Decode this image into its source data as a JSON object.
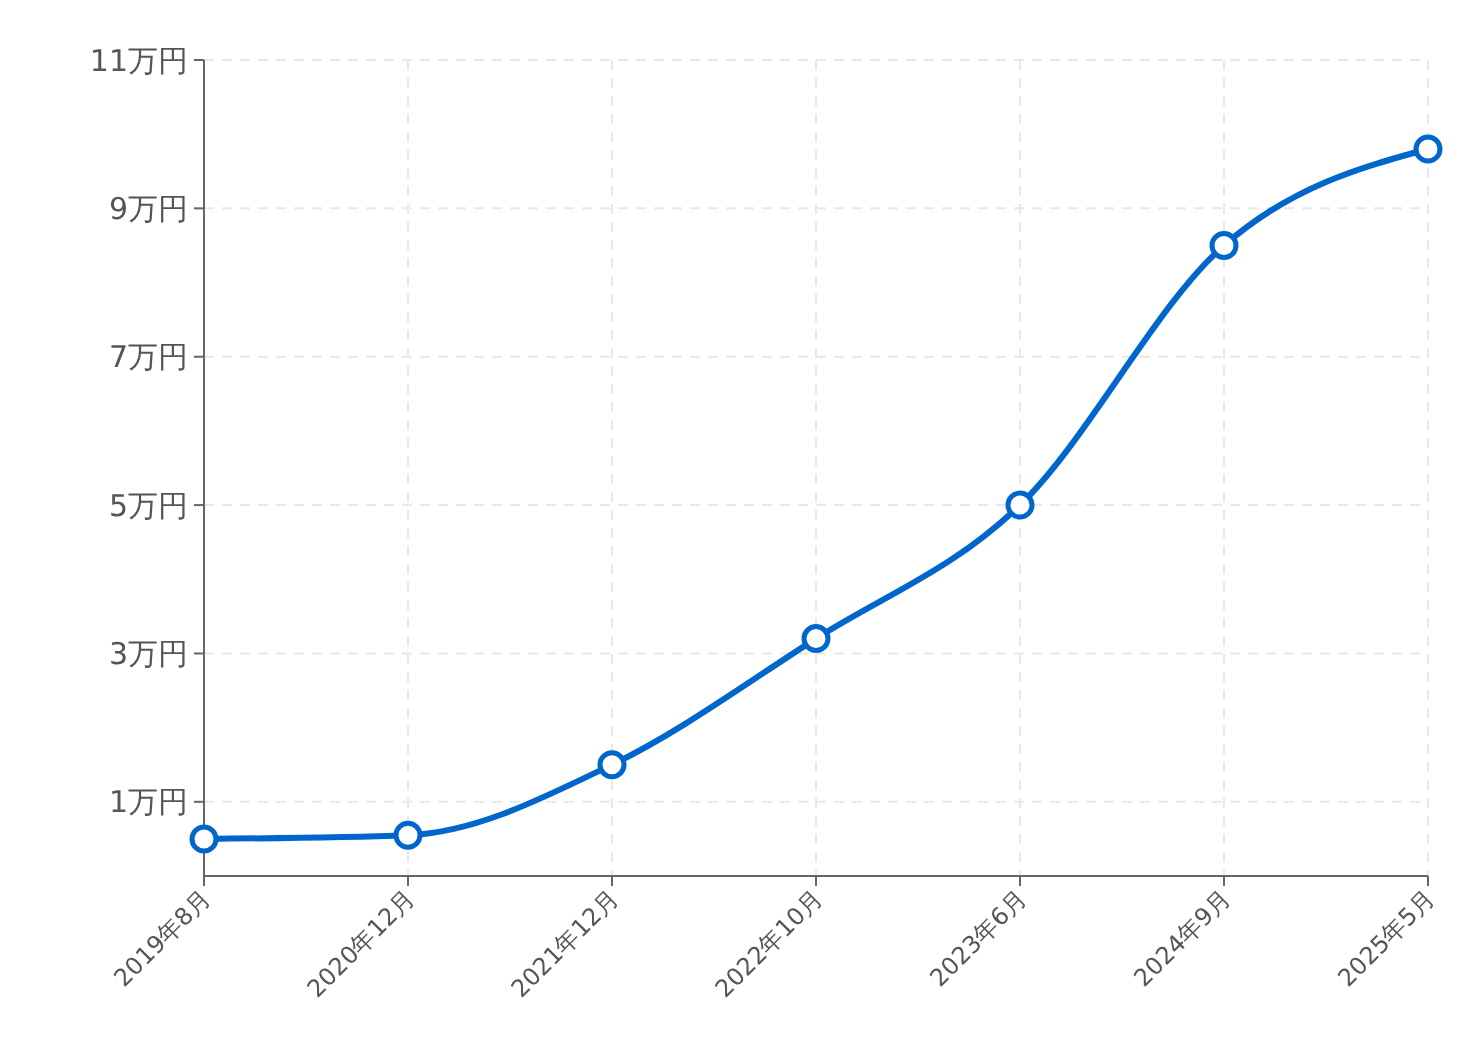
{
  "chart_data": {
    "type": "line",
    "categories": [
      "2019年8月",
      "2020年12月",
      "2021年12月",
      "2022年10月",
      "2023年6月",
      "2024年9月",
      "2025年5月"
    ],
    "series": [
      {
        "color": "#0066cc",
        "values": [
          0.5,
          0.55,
          1.5,
          3.2,
          5.0,
          8.5,
          9.8
        ]
      }
    ],
    "ylim": [
      0,
      11
    ],
    "yticks": [
      {
        "value": 1,
        "label": "1万円"
      },
      {
        "value": 3,
        "label": "3万円"
      },
      {
        "value": 5,
        "label": "5万円"
      },
      {
        "value": 7,
        "label": "7万円"
      },
      {
        "value": 9,
        "label": "9万円"
      },
      {
        "value": 11,
        "label": "11万円"
      }
    ],
    "grid": true,
    "marker": "circle",
    "line_style": "solid"
  }
}
